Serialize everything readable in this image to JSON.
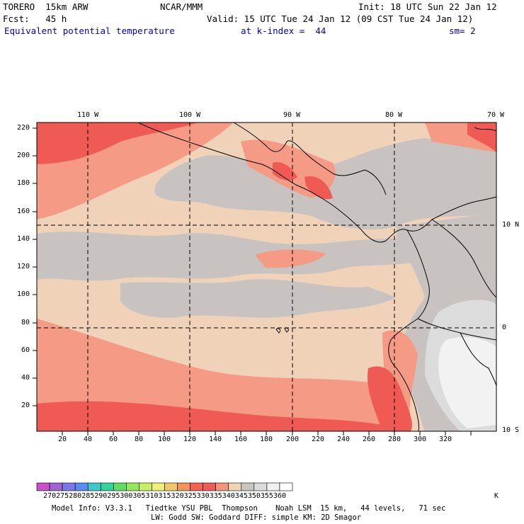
{
  "header": {
    "model": "TORERO  15km ARW",
    "center": "NCAR/MMM",
    "init": "Init: 18 UTC Sun 22 Jan 12",
    "fcst": "Fcst:   45 h",
    "valid": "Valid: 15 UTC Tue 24 Jan 12 (09 CST Tue 24 Jan 12)",
    "field": "Equivalent potential temperature",
    "level": "at k-index =  44",
    "smoothing": "sm= 2"
  },
  "map": {
    "lon_labels": [
      "110 W",
      "100 W",
      "90 W",
      "80 W",
      "70 W"
    ],
    "lat_labels": [
      "10 N",
      "0",
      "10 S"
    ],
    "y_grid_labels": [
      "220",
      "200",
      "180",
      "160",
      "140",
      "120",
      "100",
      "80",
      "60",
      "40",
      "20"
    ],
    "x_grid_labels": [
      "20",
      "40",
      "60",
      "80",
      "100",
      "120",
      "140",
      "160",
      "180",
      "200",
      "220",
      "240",
      "260",
      "280",
      "300",
      "320"
    ]
  },
  "colorbar": {
    "unit": "K",
    "labels": [
      "270",
      "275",
      "280",
      "285",
      "290",
      "295",
      "300",
      "305",
      "310",
      "315",
      "320",
      "325",
      "330",
      "335",
      "340",
      "345",
      "350",
      "355",
      "360"
    ],
    "colors": [
      "#c850c8",
      "#a064d2",
      "#7878e6",
      "#5a8cf0",
      "#3cc8c8",
      "#32d2a0",
      "#64dc64",
      "#96e65a",
      "#c8f064",
      "#f0f078",
      "#f0c864",
      "#f0965a",
      "#f06450",
      "#f05a5a",
      "#f09678",
      "#f0d2b4",
      "#c8c4c0",
      "#dcdcdc",
      "#f0f0f0",
      "#ffffff"
    ]
  },
  "footer": {
    "line1": "Model Info: V3.3.1   Tiedtke YSU PBL  Thompson    Noah LSM  15 km,   44 levels,   71 sec",
    "line2": "LW: Godd SW: Goddard DIFF: simple KM: 2D Smagor"
  },
  "legend_colors": {
    "salmon_dark": "#f05a55",
    "salmon_mid": "#f59a85",
    "tan": "#f0d2b9",
    "gray": "#c8c3c0",
    "light_gray": "#dcdcdc",
    "white_gray": "#f2f2f2"
  }
}
